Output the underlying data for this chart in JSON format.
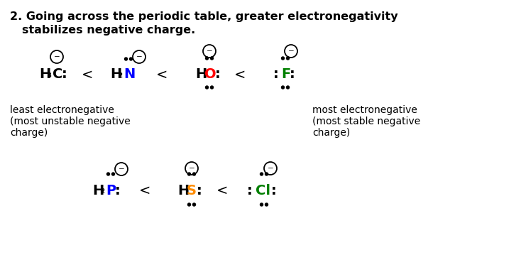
{
  "bg_color": "#ffffff",
  "black": "#000000",
  "blue": "#0000ff",
  "red": "#ff0000",
  "orange": "#ff8c00",
  "green": "#008000",
  "title1": "2. Going across the periodic table, greater electronegativity",
  "title2": "   stabilizes negative charge.",
  "label_left": "least electronegative\n(most unstable negative\ncharge)",
  "label_right": "most electronegative\n(most stable negative\ncharge)",
  "figsize": [
    7.34,
    3.66
  ],
  "dpi": 100
}
